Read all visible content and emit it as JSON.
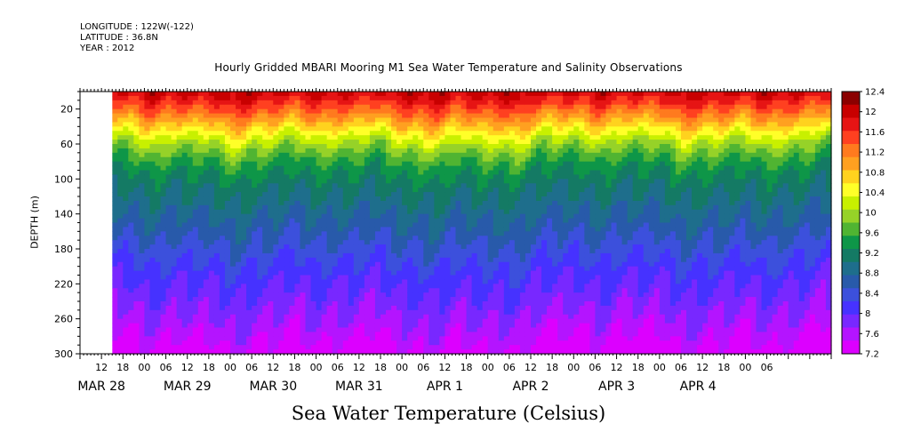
{
  "header": {
    "longitude": "LONGITUDE : 122W(-122)",
    "latitude": "LATITUDE : 36.8N",
    "year": "YEAR : 2012"
  },
  "footer": {
    "variable": "Sea Water Temperature (Celsius)"
  },
  "chart_data": {
    "type": "heatmap",
    "title": "Hourly Gridded MBARI Mooring M1 Sea Water Temperature and Salinity Observations",
    "ylabel": "DEPTH (m)",
    "ylim": [
      300,
      0
    ],
    "yticks": [
      20,
      60,
      100,
      140,
      180,
      220,
      260,
      300
    ],
    "x_hour_ticks": [
      "12",
      "18",
      "00",
      "06",
      "12",
      "18",
      "00",
      "06",
      "12",
      "18",
      "00",
      "06",
      "12",
      "18",
      "00",
      "06",
      "12",
      "18",
      "00",
      "06",
      "12",
      "18",
      "00",
      "06",
      "12",
      "18",
      "00",
      "06",
      "12",
      "18",
      "00",
      "06"
    ],
    "x_day_labels": [
      "MAR 28",
      "MAR 29",
      "MAR 30",
      "MAR 31",
      "APR 1",
      "APR 2",
      "APR 3",
      "APR 4"
    ],
    "x_range_hours": [
      0,
      210
    ],
    "data_start_hour": 9,
    "colorbar": {
      "labels": [
        "12.4",
        "12",
        "11.6",
        "11.2",
        "10.8",
        "10.4",
        "10",
        "9.6",
        "9.2",
        "8.8",
        "8.4",
        "8",
        "7.6",
        "7.2"
      ],
      "colors": [
        "#8b0000",
        "#c80000",
        "#e61414",
        "#ff4020",
        "#ff7a1e",
        "#ffa020",
        "#ffd21e",
        "#ffff28",
        "#c8f000",
        "#96d228",
        "#50b432",
        "#0e9648",
        "#147a64",
        "#1e6e8c",
        "#285aaa",
        "#3c50dc",
        "#4632ff",
        "#7828ff",
        "#b414ff",
        "#dc00ff"
      ]
    },
    "profile_depths": [
      0,
      20,
      40,
      60,
      80,
      100,
      140,
      180,
      220,
      260,
      300
    ],
    "profile_temps": [
      12.0,
      11.4,
      10.7,
      10.0,
      9.5,
      9.2,
      8.8,
      8.4,
      8.0,
      7.7,
      7.3
    ]
  }
}
